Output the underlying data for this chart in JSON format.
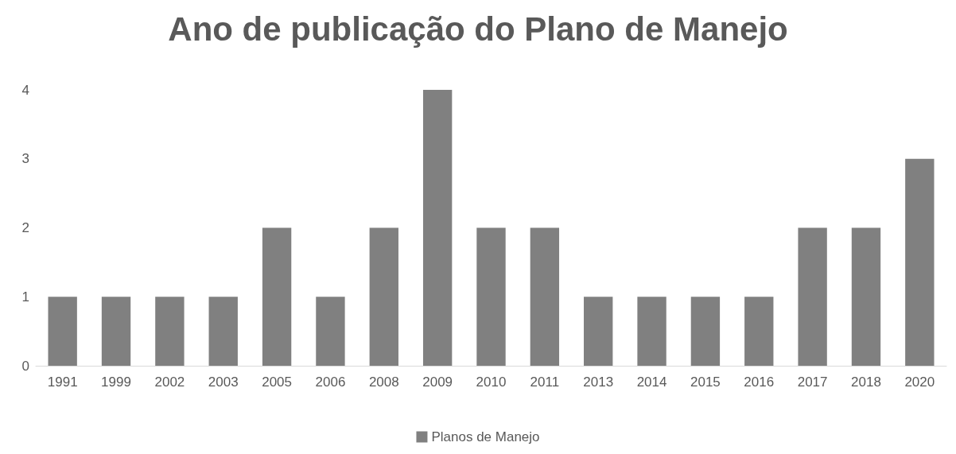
{
  "chart_data": {
    "type": "bar",
    "title": "Ano de publicação do Plano de Manejo",
    "categories": [
      "1991",
      "1999",
      "2002",
      "2003",
      "2005",
      "2006",
      "2008",
      "2009",
      "2010",
      "2011",
      "2013",
      "2014",
      "2015",
      "2016",
      "2017",
      "2018",
      "2020"
    ],
    "series": [
      {
        "name": "Planos de Manejo",
        "color": "#808080",
        "values": [
          1,
          1,
          1,
          1,
          2,
          1,
          2,
          4,
          2,
          2,
          1,
          1,
          1,
          1,
          2,
          2,
          3
        ]
      }
    ],
    "ylim": [
      0,
      4
    ],
    "yticks": [
      0,
      1,
      2,
      3,
      4
    ],
    "grid": false,
    "legend": "bottom"
  }
}
